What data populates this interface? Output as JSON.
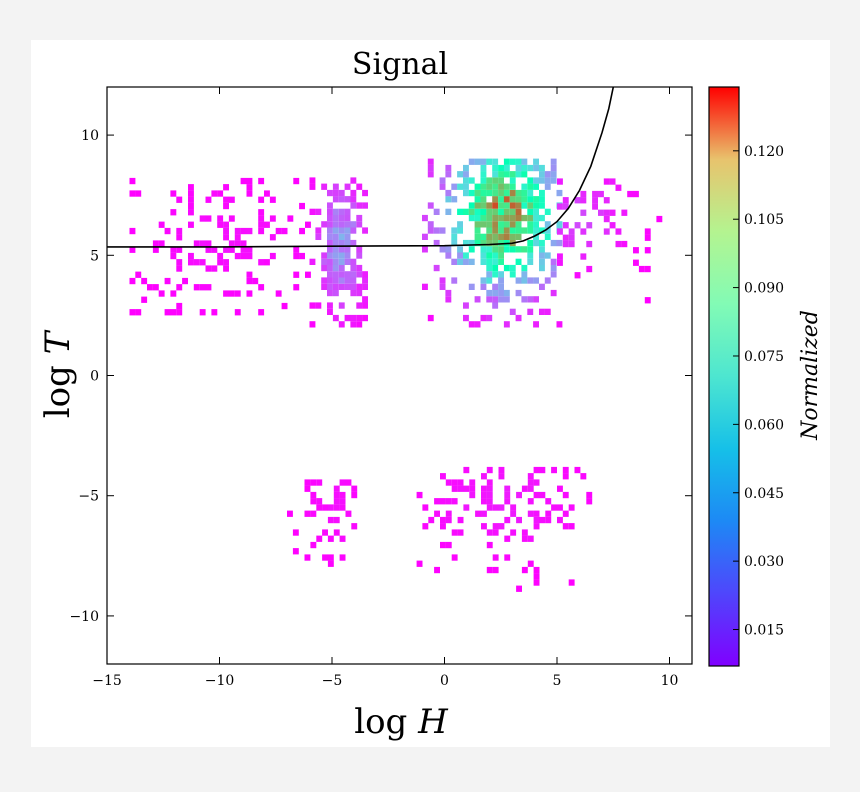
{
  "chart_data": {
    "type": "heatmap",
    "title": "Signal",
    "xlabel": "log H",
    "ylabel": "log T",
    "xlim": [
      -15,
      11
    ],
    "ylim": [
      -12,
      12
    ],
    "x_ticks": [
      -15,
      -10,
      -5,
      0,
      5,
      10
    ],
    "x_tick_labels": [
      "−15",
      "−10",
      "−5",
      "0",
      "5",
      "10"
    ],
    "y_ticks": [
      -10,
      -5,
      0,
      5,
      10
    ],
    "y_tick_labels": [
      "−10",
      "−5",
      "0",
      "5",
      "10"
    ],
    "grid": false,
    "colorbar": {
      "label": "Normalized",
      "range": [
        0.007,
        0.134
      ],
      "colormap": "rainbow",
      "ticks": [
        0.015,
        0.03,
        0.045,
        0.06,
        0.075,
        0.09,
        0.105,
        0.12
      ],
      "tick_labels": [
        "0.015",
        "0.030",
        "0.045",
        "0.060",
        "0.075",
        "0.090",
        "0.105",
        "0.120"
      ]
    },
    "clusters": [
      {
        "region": "upper-main",
        "x_range": [
          -1,
          5
        ],
        "y_range": [
          2,
          9
        ],
        "peak": [
          2.5,
          6.5
        ],
        "peak_value": 0.13
      },
      {
        "region": "upper-left",
        "x_range": [
          -6,
          -3.5
        ],
        "y_range": [
          2,
          8
        ],
        "peak": [
          -4.7,
          5.3
        ],
        "peak_value": 0.04
      },
      {
        "region": "upper-right",
        "x_range": [
          5,
          9.5
        ],
        "y_range": [
          3,
          8
        ],
        "peak": [
          6,
          6.5
        ],
        "peak_value": 0.02
      },
      {
        "region": "upper-far-left",
        "x_range": [
          -14,
          -6
        ],
        "y_range": [
          2.5,
          8
        ],
        "peak": [
          -10,
          5.5
        ],
        "peak_value": 0.01
      },
      {
        "region": "lower-center",
        "x_range": [
          -1.5,
          6.5
        ],
        "y_range": [
          -9,
          -4
        ],
        "peak": [
          2.5,
          -5.5
        ],
        "peak_value": 0.012
      },
      {
        "region": "lower-left",
        "x_range": [
          -7,
          -4
        ],
        "y_range": [
          -9,
          -4
        ],
        "peak": [
          -5,
          -5.5
        ],
        "peak_value": 0.01
      }
    ],
    "curve": {
      "description": "black line",
      "points": [
        [
          -15,
          5.35
        ],
        [
          -10,
          5.35
        ],
        [
          -5,
          5.38
        ],
        [
          0,
          5.4
        ],
        [
          2,
          5.45
        ],
        [
          3,
          5.5
        ],
        [
          3.5,
          5.6
        ],
        [
          4,
          5.8
        ],
        [
          4.5,
          6.05
        ],
        [
          5,
          6.4
        ],
        [
          5.5,
          6.95
        ],
        [
          6,
          7.7
        ],
        [
          6.5,
          8.7
        ],
        [
          7,
          10.1
        ],
        [
          7.3,
          11.1
        ],
        [
          7.5,
          12
        ]
      ]
    }
  }
}
